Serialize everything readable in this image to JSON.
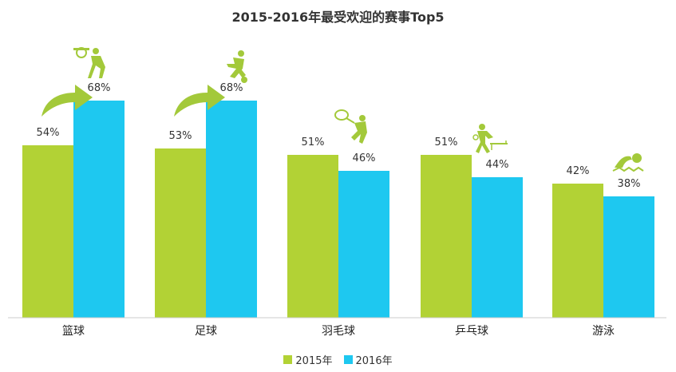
{
  "chart_data": {
    "type": "bar",
    "title": "2015-2016年最受欢迎的赛事Top5",
    "xlabel": "",
    "ylabel": "",
    "categories": [
      "篮球",
      "足球",
      "羽毛球",
      "乒乓球",
      "游泳"
    ],
    "series": [
      {
        "name": "2015年",
        "values": [
          54,
          53,
          51,
          51,
          42
        ],
        "labels": [
          "54%",
          "53%",
          "51%",
          "51%",
          "42%"
        ],
        "color": "#b2d235"
      },
      {
        "name": "2016年",
        "values": [
          68,
          68,
          46,
          44,
          38
        ],
        "labels": [
          "68%",
          "68%",
          "46%",
          "44%",
          "38%"
        ],
        "color": "#1ec8f0"
      }
    ],
    "ylim": [
      0,
      100
    ],
    "grid": false,
    "legend_position": "bottom",
    "icons": [
      "basketball-player-icon",
      "soccer-player-icon",
      "badminton-player-icon",
      "table-tennis-player-icon",
      "swimmer-icon"
    ],
    "growth_arrows": [
      "篮球",
      "足球"
    ],
    "icon_color": "#a3c93a"
  }
}
